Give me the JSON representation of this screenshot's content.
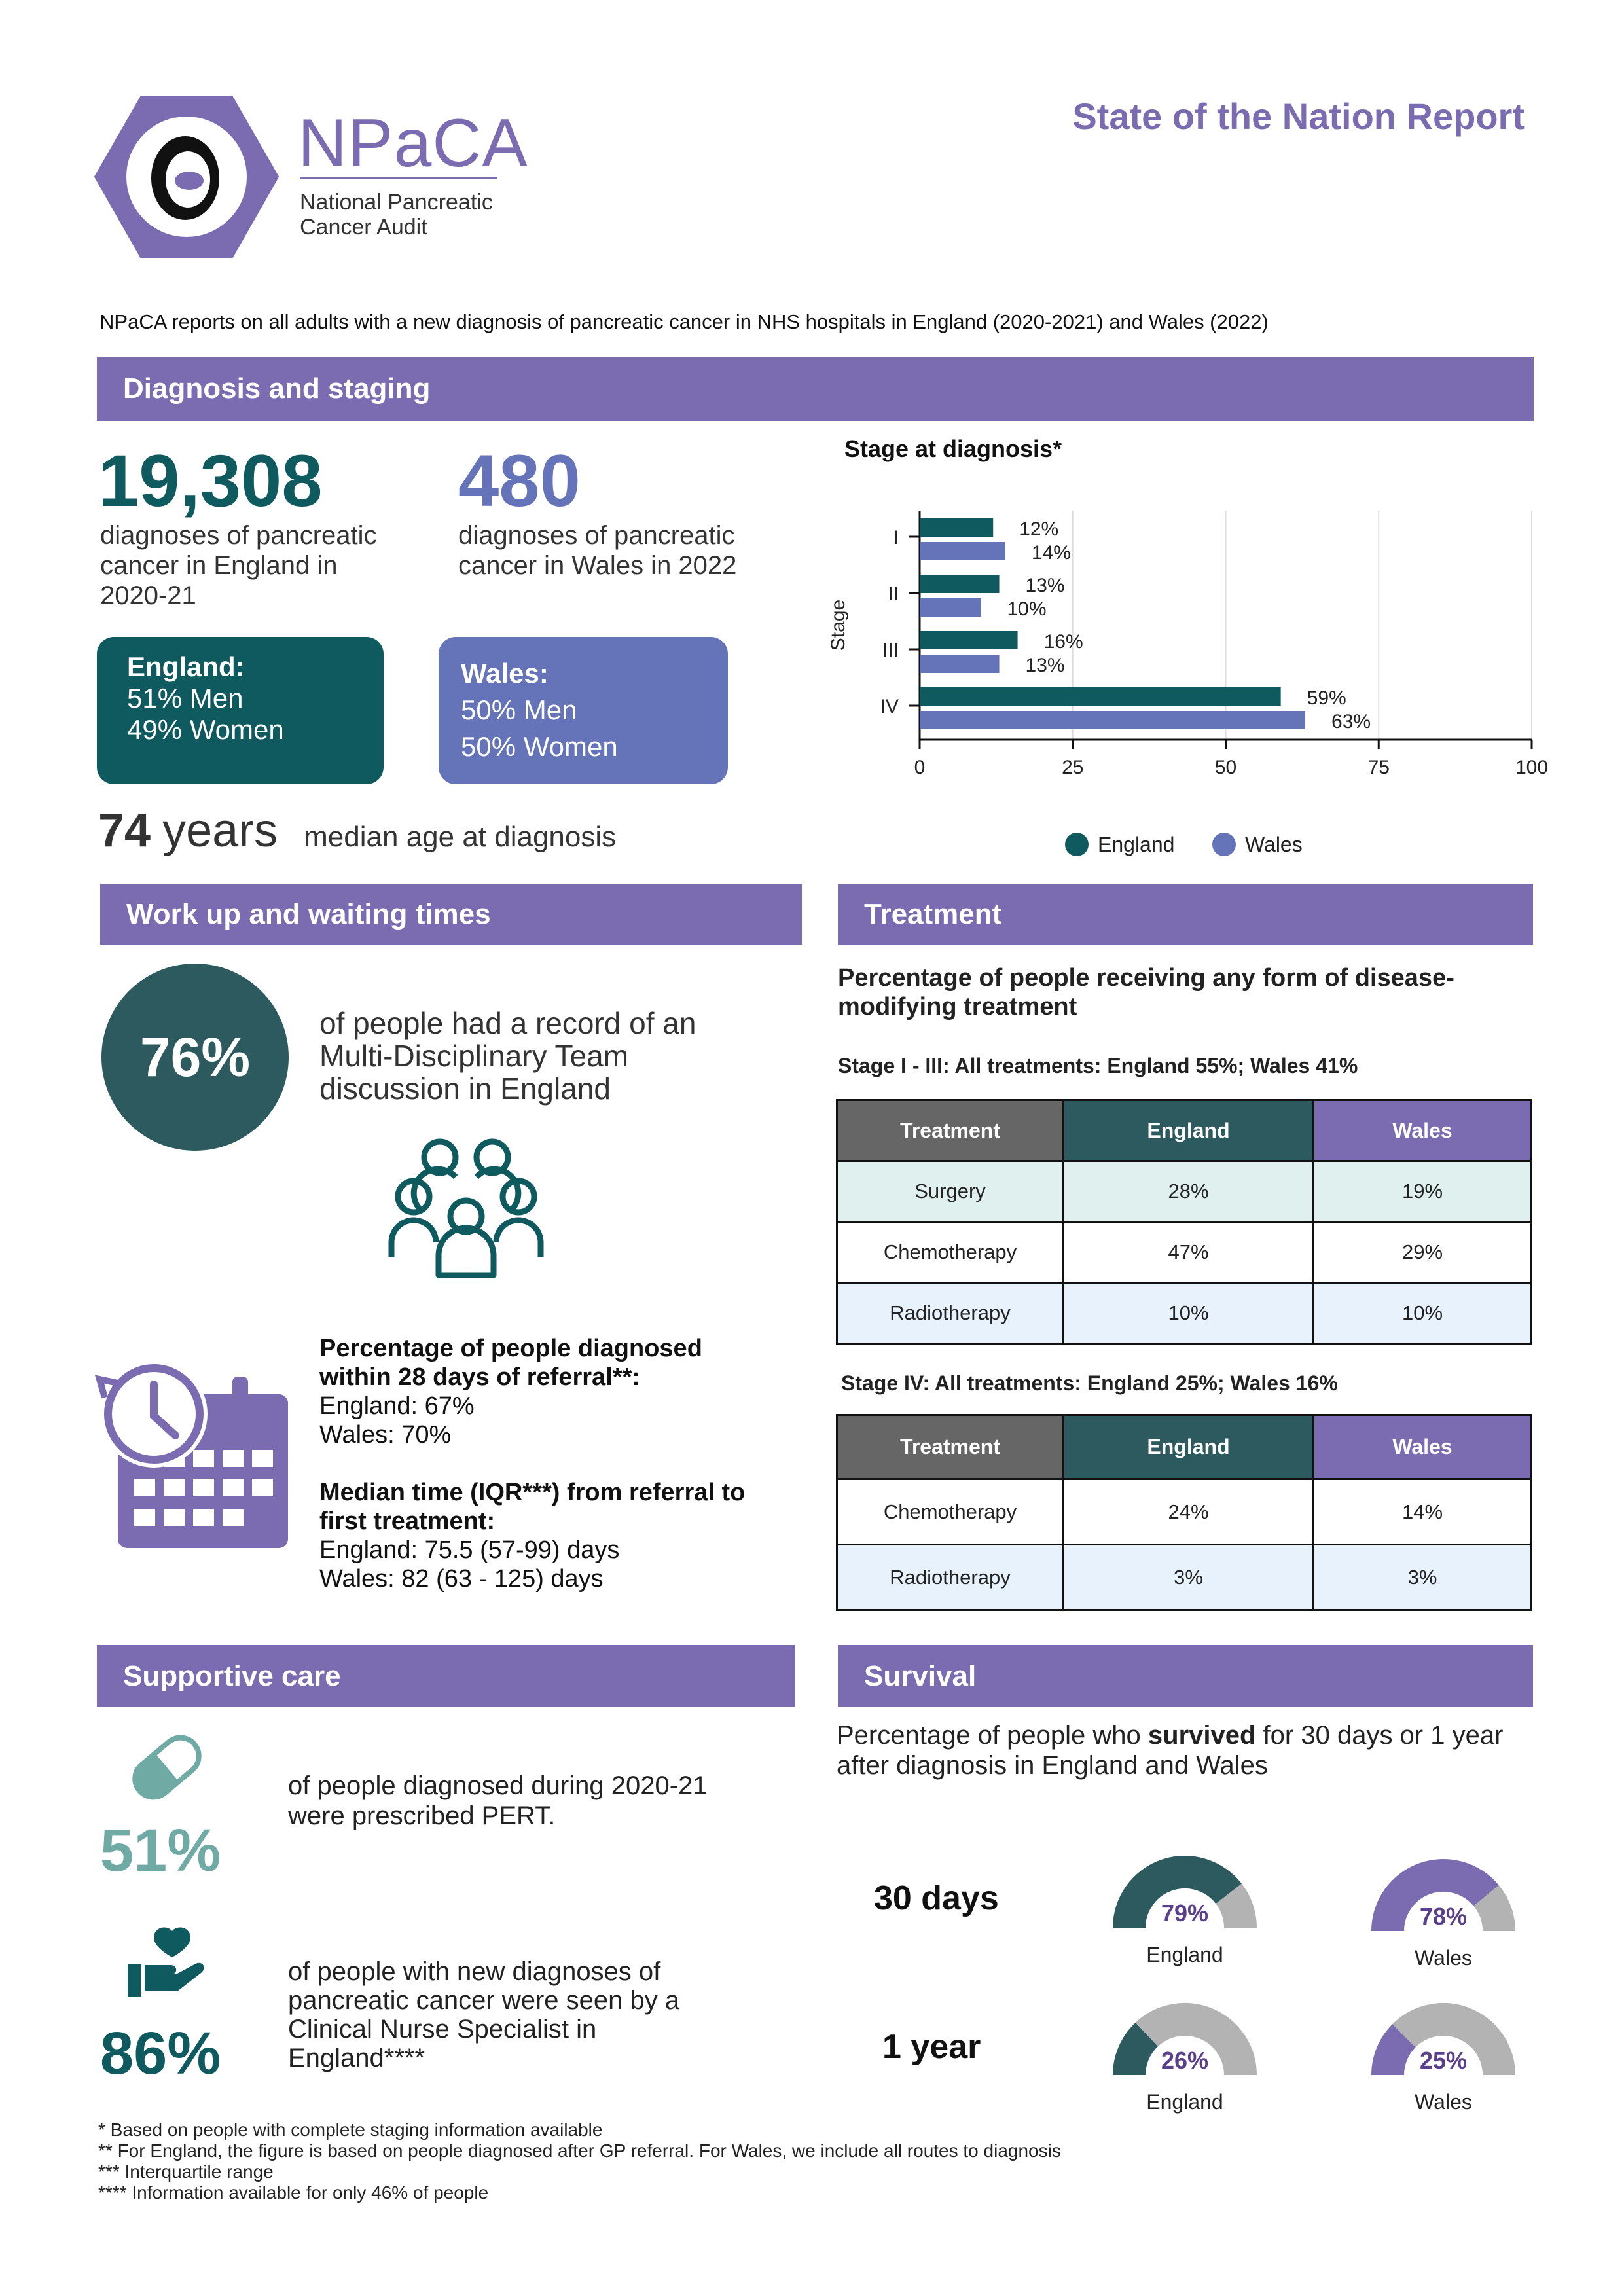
{
  "header": {
    "logo_short": "NPaCA",
    "logo_line1": "National Pancreatic",
    "logo_line2": "Cancer Audit",
    "report_title": "State of the Nation Report",
    "intro": "NPaCA reports on all adults with a new diagnosis of pancreatic cancer in NHS hospitals in England (2020-2021) and Wales (2022)"
  },
  "colors": {
    "purple": "#7b6bb0",
    "teal_dark": "#0f5a5e",
    "wales_blue": "#6574b8",
    "grey": "#b3b3b3"
  },
  "diagnosis": {
    "section_title": "Diagnosis and staging",
    "england_count": "19,308",
    "england_desc_1": "diagnoses of pancreatic",
    "england_desc_2": "cancer in England in",
    "england_desc_3": "2020-21",
    "wales_count": "480",
    "wales_desc_1": "diagnoses of pancreatic",
    "wales_desc_2": "cancer in Wales in 2022",
    "england_box_title": "England:",
    "england_box_men": "51% Men",
    "england_box_women": "49% Women",
    "wales_box_title": "Wales:",
    "wales_box_men": "50% Men",
    "wales_box_women": "50% Women",
    "median_age_num": "74",
    "median_age_unit": "years",
    "median_age_label": "median age at diagnosis"
  },
  "chart_data": {
    "type": "bar",
    "orientation": "horizontal",
    "title": "Stage at diagnosis*",
    "ylabel": "Stage",
    "categories": [
      "I",
      "II",
      "III",
      "IV"
    ],
    "series": [
      {
        "name": "England",
        "values": [
          12,
          13,
          16,
          59
        ],
        "labels": [
          "12%",
          "13%",
          "16%",
          "59%"
        ],
        "color": "#0f5a5e"
      },
      {
        "name": "Wales",
        "values": [
          14,
          10,
          13,
          63
        ],
        "labels": [
          "14%",
          "10%",
          "13%",
          "63%"
        ],
        "color": "#6574b8"
      }
    ],
    "xlim": [
      0,
      100
    ],
    "xticks": [
      "0",
      "25",
      "50",
      "75",
      "100"
    ],
    "grid": true,
    "legend": "bottom"
  },
  "workup": {
    "section_title": "Work up and waiting times",
    "mdt_pct": "76%",
    "mdt_text_1": "of people had a record of an",
    "mdt_text_2": "Multi-Disciplinary Team",
    "mdt_text_3": "discussion in England",
    "referral_title_1": "Percentage of people diagnosed",
    "referral_title_2": "within 28 days of referral**:",
    "referral_england": "England: 67%",
    "referral_wales": "Wales: 70%",
    "median_title_1": "Median time (IQR***) from referral to",
    "median_title_2": "first treatment:",
    "median_england": "England: 75.5 (57-99) days",
    "median_wales": "Wales: 82 (63 - 125) days"
  },
  "treatment": {
    "section_title": "Treatment",
    "subtitle_1": "Percentage of people receiving any form of disease-",
    "subtitle_2": "modifying treatment",
    "stage13_prefix": "Stage I - III: All treatments: ",
    "stage13_values": "England 55%; Wales 41%",
    "stage4_caption": "Stage IV: All treatments: England 25%; Wales 16%",
    "headers": [
      "Treatment",
      "England",
      "Wales"
    ],
    "table1": [
      [
        "Surgery",
        "28%",
        "19%"
      ],
      [
        "Chemotherapy",
        "47%",
        "29%"
      ],
      [
        "Radiotherapy",
        "10%",
        "10%"
      ]
    ],
    "table2": [
      [
        "Chemotherapy",
        "24%",
        "14%"
      ],
      [
        "Radiotherapy",
        "3%",
        "3%"
      ]
    ]
  },
  "supportive": {
    "section_title": "Supportive care",
    "pert_pct": "51%",
    "pert_text_1": "of people diagnosed during 2020-21",
    "pert_text_2": "were prescribed PERT.",
    "cns_pct": "86%",
    "cns_text_1": "of people with new diagnoses of",
    "cns_text_2": "pancreatic cancer were seen by a",
    "cns_text_3": "Clinical Nurse Specialist in",
    "cns_text_4": "England****"
  },
  "survival": {
    "section_title": "Survival",
    "intro_1_a": "Percentage of people who ",
    "intro_1_b": "survived",
    "intro_1_c": " for 30 days or 1 year",
    "intro_2": "after diagnosis in England and Wales",
    "row1_label": "30 days",
    "row2_label": "1 year",
    "gauges": [
      {
        "value": 79,
        "text": "79%",
        "label": "England",
        "color": "#2c5a5e"
      },
      {
        "value": 78,
        "text": "78%",
        "label": "Wales",
        "color": "#7b6bb0"
      },
      {
        "value": 26,
        "text": "26%",
        "label": "England",
        "color": "#2c5a5e"
      },
      {
        "value": 25,
        "text": "25%",
        "label": "Wales",
        "color": "#7b6bb0"
      }
    ]
  },
  "footnotes": [
    "* Based on people with complete staging information available",
    "** For England, the figure is based on people diagnosed after GP referral. For Wales, we include all routes to diagnosis",
    "*** Interquartile range",
    "**** Information available for only 46% of people"
  ]
}
